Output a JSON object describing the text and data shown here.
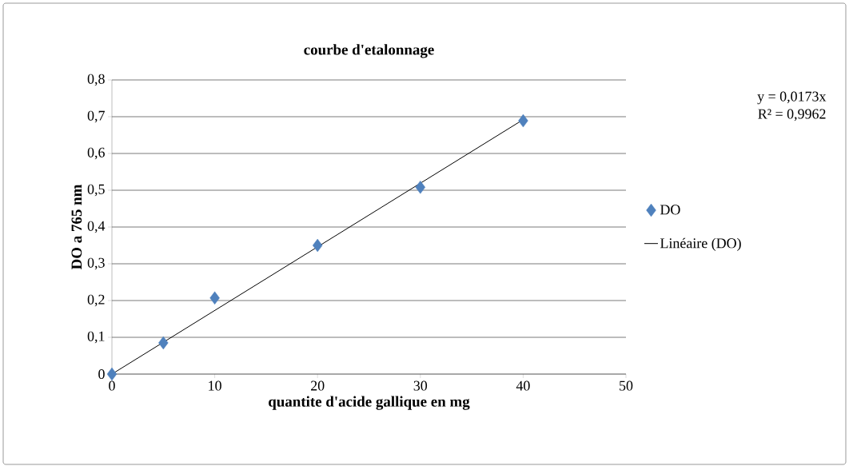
{
  "chart_data": {
    "type": "scatter",
    "title": "courbe d'etalonnage",
    "xlabel": "quantite d'acide gallique  en mg",
    "ylabel": "DO  a 765  nm",
    "x": [
      0,
      5,
      10,
      20,
      30,
      40
    ],
    "series": [
      {
        "name": "DO",
        "color": "#4f81bd",
        "marker": "diamond",
        "values": [
          0,
          0.085,
          0.207,
          0.35,
          0.508,
          0.689
        ]
      },
      {
        "name": "Linéaire (DO)",
        "type": "line",
        "color": "#000000",
        "marker": "none",
        "line_style": "solid",
        "x": [
          0,
          40
        ],
        "values": [
          0,
          0.692
        ]
      }
    ],
    "xlim": [
      0,
      50
    ],
    "xticks": [
      0,
      10,
      20,
      30,
      40,
      50
    ],
    "ylim": [
      0,
      0.8
    ],
    "yticks": [
      0,
      {
        "value": 0.1,
        "label": "0,1"
      },
      {
        "value": 0.2,
        "label": "0,2"
      },
      {
        "value": 0.3,
        "label": "0,3"
      },
      {
        "value": 0.4,
        "label": "0,4"
      },
      {
        "value": 0.5,
        "label": "0,5"
      },
      {
        "value": 0.6,
        "label": "0,6"
      },
      {
        "value": 0.7,
        "label": "0,7"
      },
      {
        "value": 0.8,
        "label": "0,8"
      }
    ],
    "grid": "y",
    "legend": "right",
    "annotations": [
      "y = 0,0173x",
      "R² = 0,9962"
    ]
  }
}
